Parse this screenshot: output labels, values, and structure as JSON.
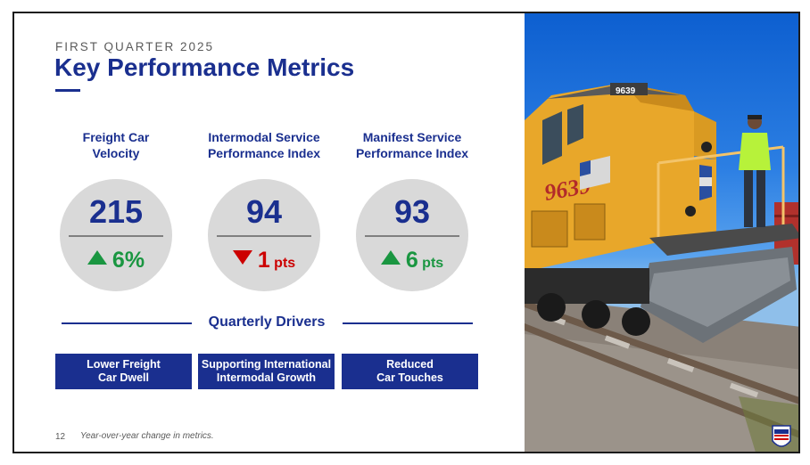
{
  "header": {
    "kicker": "FIRST QUARTER 2025",
    "title": "Key Performance Metrics"
  },
  "metrics": [
    {
      "label": "Freight Car\nVelocity",
      "value": "215",
      "change_value": "6%",
      "change_unit": "",
      "direction": "up"
    },
    {
      "label": "Intermodal Service\nPerformance Index",
      "value": "94",
      "change_value": "1",
      "change_unit": " pts",
      "direction": "down"
    },
    {
      "label": "Manifest Service\nPerformance Index",
      "value": "93",
      "change_value": "6",
      "change_unit": " pts",
      "direction": "up"
    }
  ],
  "drivers": {
    "heading": "Quarterly Drivers",
    "items": [
      "Lower Freight\nCar Dwell",
      "Supporting International\nIntermodal Growth",
      "Reduced\nCar Touches"
    ]
  },
  "footer": {
    "page_number": "12",
    "note": "Year-over-year change in metrics."
  },
  "photo": {
    "locomotive_number": "9639",
    "logo_text": "UNION PACIFIC"
  },
  "colors": {
    "brand_blue": "#1a2f8f",
    "positive_green": "#1a9641",
    "negative_red": "#cc0000",
    "circle_gray": "#d9d9d9",
    "locomotive_yellow": "#e8a72a"
  }
}
